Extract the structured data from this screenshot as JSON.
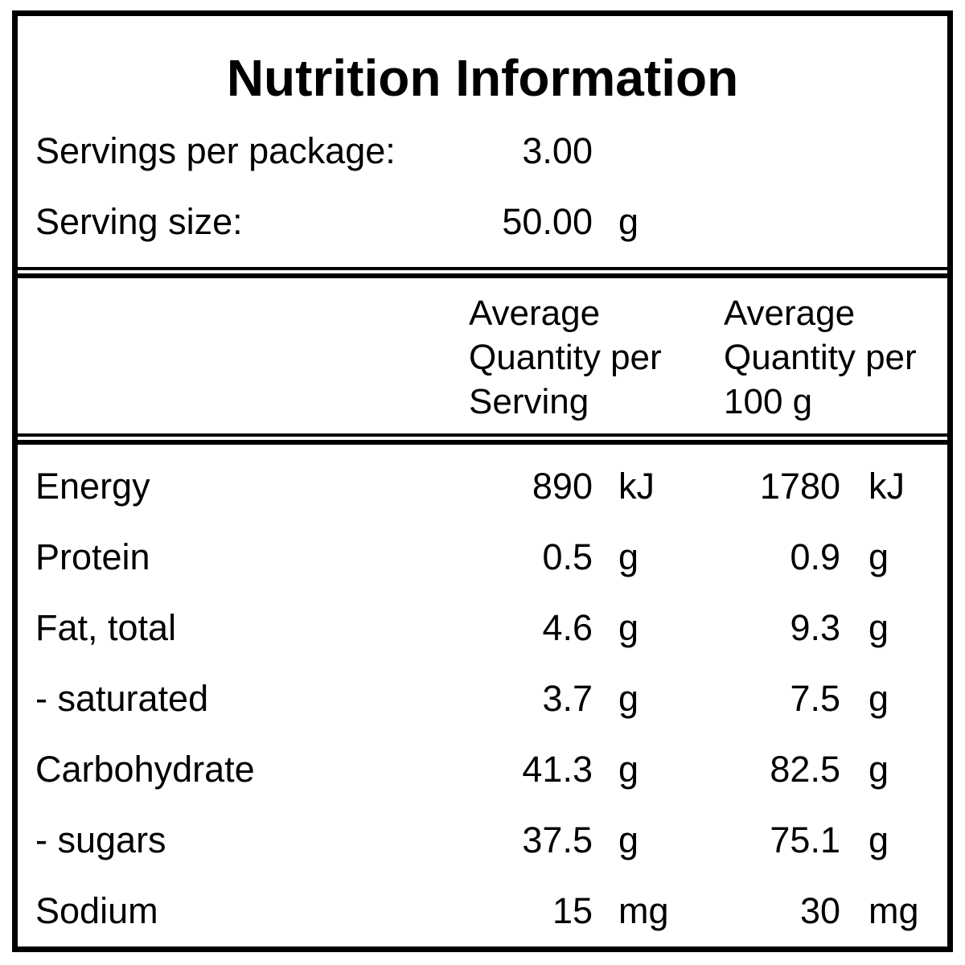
{
  "panel": {
    "title": "Nutrition Information",
    "serving_info": [
      {
        "label": "Servings per package:",
        "value": "3.00",
        "unit": ""
      },
      {
        "label": "Serving size:",
        "value": "50.00",
        "unit": "g"
      }
    ],
    "column_headers": [
      {
        "name": "per-serving",
        "lines": [
          "Average",
          "Quantity per",
          "Serving"
        ]
      },
      {
        "name": "per-100g",
        "lines": [
          "Average",
          "Quantity per",
          "100 g"
        ]
      }
    ],
    "nutrients": [
      {
        "name": "Energy",
        "per_serving_value": "890",
        "per_serving_unit": "kJ",
        "per_100g_value": "1780",
        "per_100g_unit": "kJ"
      },
      {
        "name": "Protein",
        "per_serving_value": "0.5",
        "per_serving_unit": "g",
        "per_100g_value": "0.9",
        "per_100g_unit": "g"
      },
      {
        "name": "Fat, total",
        "per_serving_value": "4.6",
        "per_serving_unit": "g",
        "per_100g_value": "9.3",
        "per_100g_unit": "g"
      },
      {
        "name": "- saturated",
        "per_serving_value": "3.7",
        "per_serving_unit": "g",
        "per_100g_value": "7.5",
        "per_100g_unit": "g"
      },
      {
        "name": "Carbohydrate",
        "per_serving_value": "41.3",
        "per_serving_unit": "g",
        "per_100g_value": "82.5",
        "per_100g_unit": "g"
      },
      {
        "name": "- sugars",
        "per_serving_value": "37.5",
        "per_serving_unit": "g",
        "per_100g_value": "75.1",
        "per_100g_unit": "g"
      },
      {
        "name": "Sodium",
        "per_serving_value": "15",
        "per_serving_unit": "mg",
        "per_100g_value": "30",
        "per_100g_unit": "mg"
      }
    ],
    "colors": {
      "text": "#000000",
      "border": "#000000",
      "background": "#ffffff"
    }
  }
}
